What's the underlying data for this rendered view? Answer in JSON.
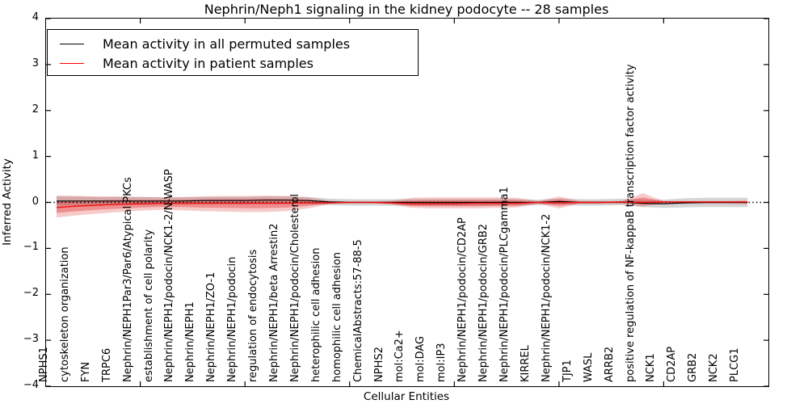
{
  "title": "Nephrin/Neph1 signaling in the kidney podocyte -- 28 samples",
  "axes": {
    "x_label": "Cellular Entities",
    "y_label": "Inferred Activity"
  },
  "legend": {
    "items": [
      {
        "label": "Mean activity in all permuted samples",
        "color": "#000000"
      },
      {
        "label": "Mean activity in patient samples",
        "color": "#ff0000"
      }
    ]
  },
  "colors": {
    "patient_line": "#ee1111",
    "permuted_line": "#000000",
    "patient_band_outer": "rgba(225,45,45,0.25)",
    "patient_band_inner": "rgba(225,45,45,0.38)",
    "permuted_band": "rgba(150,150,150,0.40)",
    "zero_line": "#000000",
    "axis": "#000000"
  },
  "chart_data": {
    "type": "line",
    "title": "Nephrin/Neph1 signaling in the kidney podocyte -- 28 samples",
    "xlabel": "Cellular Entities",
    "ylabel": "Inferred Activity",
    "ylim": [
      -4,
      4
    ],
    "xlim": [
      0.5,
      35
    ],
    "yticks": [
      4,
      3,
      2,
      1,
      0,
      -1,
      -2,
      -3,
      -4
    ],
    "xticks": [
      5,
      10,
      15,
      20,
      25,
      30
    ],
    "grid": false,
    "legend_position": "upper left",
    "sample_count": 28,
    "categories": [
      "NPHS1",
      "cytoskeleton organization",
      "FYN",
      "TRPC6",
      "Nephrin/NEPH1Par3/Par6/Atypical PKCs",
      "establishment of cell polarity",
      "Nephrin/NEPH1/podocin/NCK1-2/N-WASP",
      "Nephrin/NEPH1",
      "Nephrin/NEPH1/ZO-1",
      "Nephrin/NEPH1/podocin",
      "regulation of endocytosis",
      "Nephrin/NEPH1/beta Arrestin2",
      "Nephrin/NEPH1/podocin/Cholesterol",
      "heterophilic cell adhesion",
      "homophilic cell adhesion",
      "ChemicalAbstracts:57-88-5",
      "NPHS2",
      "mol:Ca2+",
      "mol:DAG",
      "mol:IP3",
      "Nephrin/NEPH1/podocin/CD2AP",
      "Nephrin/NEPH1/podocin/GRB2",
      "Nephrin/NEPH1/podocin/PLCgamma1",
      "KIRREL",
      "Nephrin/NEPH1/podocin/NCK1-2",
      "TJP1",
      "WASL",
      "ARRB2",
      "positive regulation of NF-kappaB transcription factor activity",
      "NCK1",
      "CD2AP",
      "GRB2",
      "NCK2",
      "PLCG1"
    ],
    "series": [
      {
        "name": "Mean activity in all permuted samples",
        "color": "#000000",
        "values": [
          0.03,
          0.03,
          0.03,
          0.03,
          0.03,
          0.03,
          0.03,
          0.04,
          0.04,
          0.04,
          0.05,
          0.05,
          0.04,
          0.01,
          0,
          0,
          0,
          0,
          0,
          0,
          0,
          0,
          0,
          0,
          0.02,
          0,
          0,
          0.01,
          -0.02,
          -0.03,
          -0.01,
          0,
          0,
          0
        ]
      },
      {
        "name": "Mean activity in patient samples",
        "color": "#ee1111",
        "values": [
          -0.11,
          -0.08,
          -0.06,
          -0.04,
          -0.03,
          -0.02,
          -0.02,
          -0.02,
          -0.02,
          -0.02,
          -0.02,
          -0.02,
          -0.01,
          -0.01,
          0,
          0,
          -0.01,
          -0.03,
          -0.03,
          -0.03,
          -0.02,
          -0.02,
          -0.02,
          0,
          -0.01,
          0,
          0,
          0.01,
          0,
          0.01,
          0.01,
          0.01,
          0.01,
          0.01
        ]
      }
    ],
    "bands": [
      {
        "name": "patient samples spread",
        "upper": [
          0.15,
          0.14,
          0.13,
          0.13,
          0.12,
          0.11,
          0.12,
          0.13,
          0.14,
          0.14,
          0.15,
          0.14,
          0.11,
          0.04,
          0.02,
          0.02,
          0.04,
          0.1,
          0.11,
          0.11,
          0.11,
          0.11,
          0.1,
          0.03,
          0.13,
          0.03,
          0.03,
          0.03,
          0.2,
          0.03,
          0.03,
          0.03,
          0.03,
          0.04
        ],
        "lower": [
          -0.33,
          -0.28,
          -0.24,
          -0.21,
          -0.18,
          -0.16,
          -0.17,
          -0.19,
          -0.2,
          -0.21,
          -0.21,
          -0.19,
          -0.13,
          -0.04,
          -0.02,
          -0.02,
          -0.05,
          -0.12,
          -0.13,
          -0.13,
          -0.13,
          -0.12,
          -0.11,
          -0.03,
          -0.13,
          -0.03,
          -0.03,
          -0.03,
          -0.09,
          -0.03,
          -0.03,
          -0.03,
          -0.03,
          -0.04
        ]
      },
      {
        "name": "permuted samples spread",
        "half_width": [
          0.1,
          0.1,
          0.09,
          0.09,
          0.09,
          0.08,
          0.08,
          0.08,
          0.08,
          0.08,
          0.08,
          0.08,
          0.08,
          0.07,
          0.07,
          0.07,
          0.07,
          0.07,
          0.07,
          0.07,
          0.07,
          0.07,
          0.07,
          0.06,
          0.06,
          0.07,
          0.07,
          0.07,
          0.08,
          0.09,
          0.1,
          0.1,
          0.1,
          0.1
        ]
      }
    ],
    "zero_line": {
      "y": 0,
      "style": "dotted",
      "color": "#000000"
    }
  }
}
